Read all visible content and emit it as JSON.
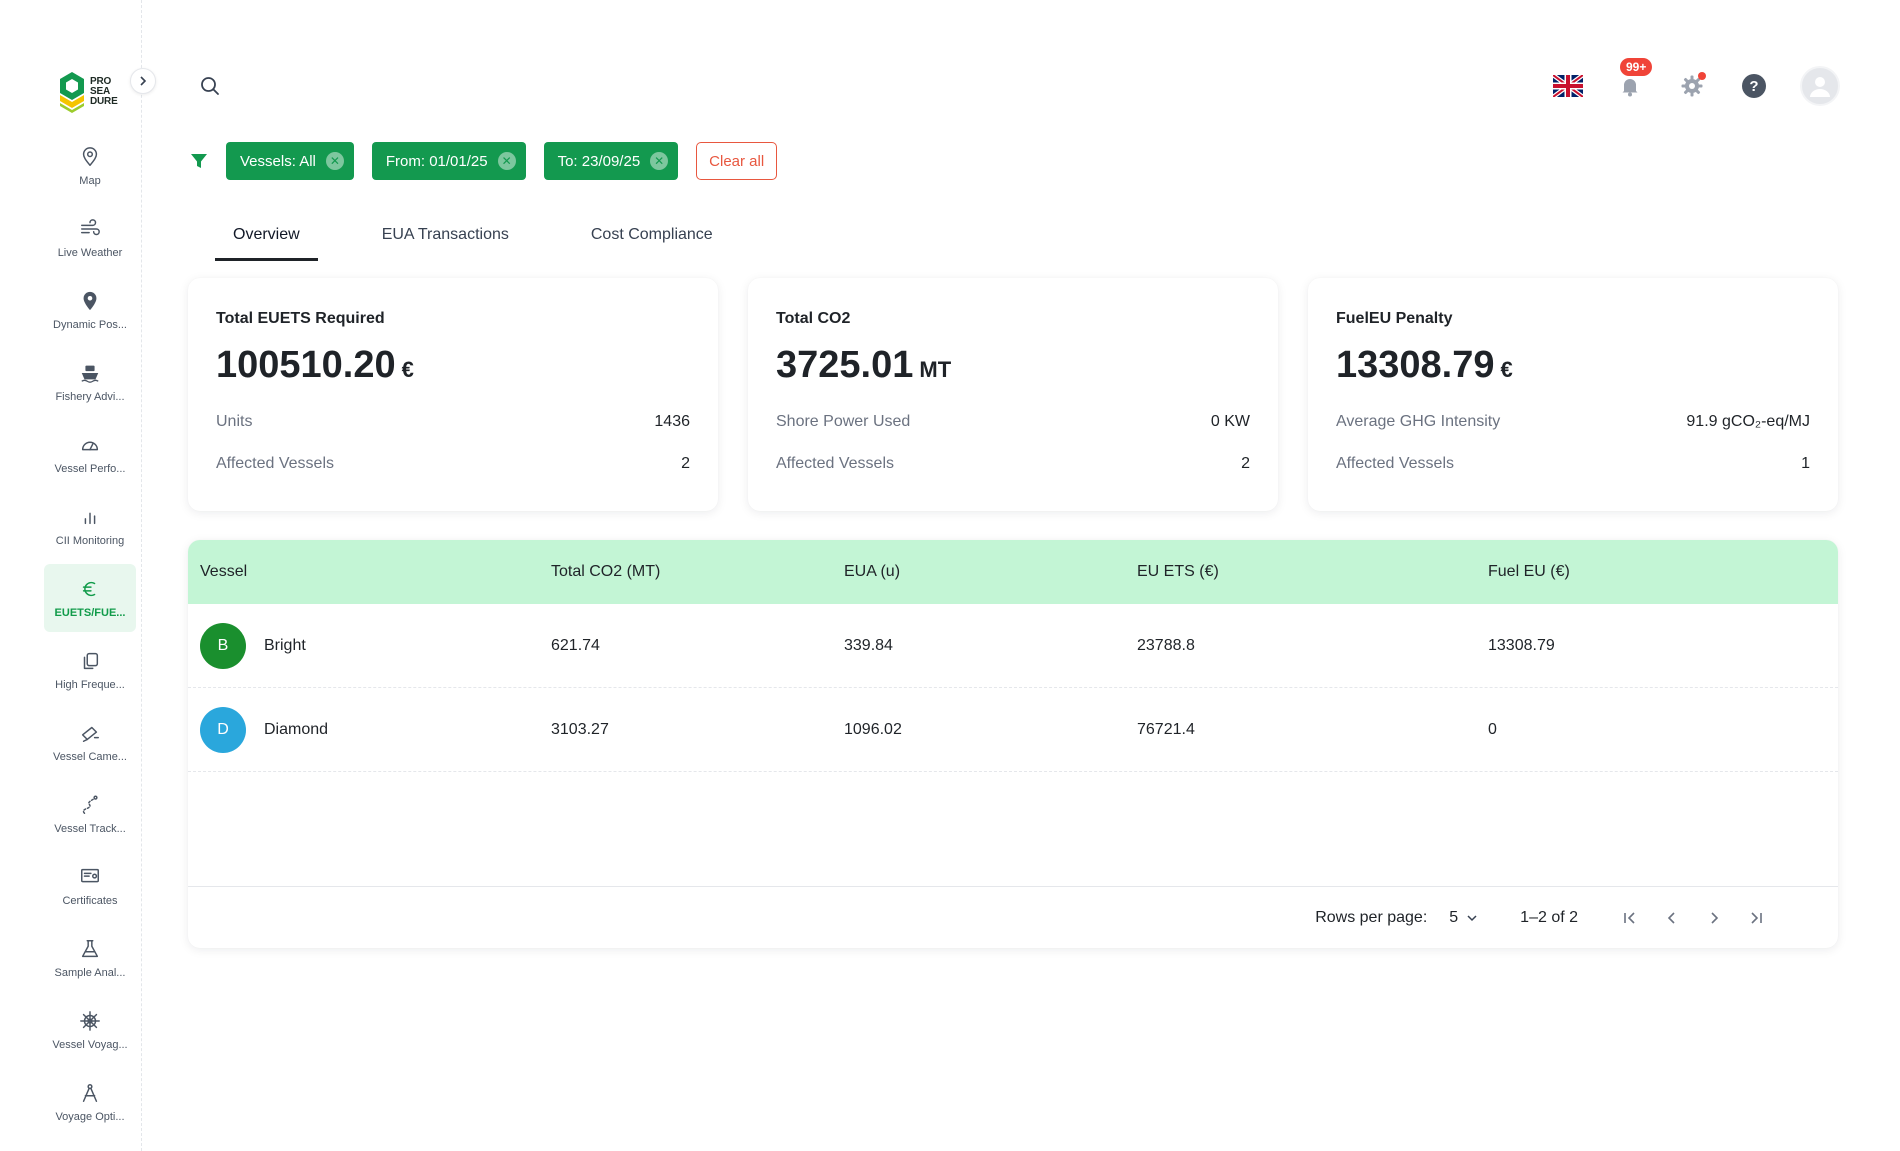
{
  "logo": {
    "line1": "PRO",
    "line2": "SEA",
    "line3": "DURE"
  },
  "sidebar": {
    "items": [
      {
        "label": "Map",
        "icon": "map-pin-icon",
        "active": false
      },
      {
        "label": "Live Weather",
        "icon": "wind-icon",
        "active": false
      },
      {
        "label": "Dynamic Pos...",
        "icon": "location-icon",
        "active": false
      },
      {
        "label": "Fishery Advi...",
        "icon": "ship-icon",
        "active": false
      },
      {
        "label": "Vessel Perfo...",
        "icon": "gauge-icon",
        "active": false
      },
      {
        "label": "CII Monitoring",
        "icon": "bar-chart-icon",
        "active": false
      },
      {
        "label": "EUETS/FUE...",
        "icon": "euro-icon",
        "active": true
      },
      {
        "label": "High Freque...",
        "icon": "copy-icon",
        "active": false
      },
      {
        "label": "Vessel Came...",
        "icon": "camera-icon",
        "active": false
      },
      {
        "label": "Vessel Track...",
        "icon": "route-icon",
        "active": false
      },
      {
        "label": "Certificates",
        "icon": "certificate-icon",
        "active": false
      },
      {
        "label": "Sample Anal...",
        "icon": "flask-icon",
        "active": false
      },
      {
        "label": "Vessel Voyag...",
        "icon": "helm-icon",
        "active": false
      },
      {
        "label": "Voyage Opti...",
        "icon": "compass-icon",
        "active": false
      }
    ]
  },
  "header": {
    "notifications_badge": "99+"
  },
  "filters": {
    "chips": [
      {
        "label": "Vessels: All"
      },
      {
        "label": "From: 01/01/25"
      },
      {
        "label": "To: 23/09/25"
      }
    ],
    "clear_label": "Clear all"
  },
  "tabs": [
    {
      "label": "Overview",
      "active": true
    },
    {
      "label": "EUA Transactions",
      "active": false
    },
    {
      "label": "Cost Compliance",
      "active": false
    }
  ],
  "cards": [
    {
      "title": "Total EUETS Required",
      "value": "100510.20",
      "unit": "€",
      "rows": [
        {
          "key": "Units",
          "value": "1436"
        },
        {
          "key": "Affected Vessels",
          "value": "2"
        }
      ]
    },
    {
      "title": "Total CO2",
      "value": "3725.01",
      "unit": "MT",
      "rows": [
        {
          "key": "Shore Power Used",
          "value": "0 KW"
        },
        {
          "key": "Affected Vessels",
          "value": "2"
        }
      ]
    },
    {
      "title": "FuelEU Penalty",
      "value": "13308.79",
      "unit": "€",
      "rows": [
        {
          "key": "Average GHG Intensity",
          "value": "91.9 gCO₂-eq/MJ"
        },
        {
          "key": "Affected Vessels",
          "value": "1"
        }
      ]
    }
  ],
  "table": {
    "columns": [
      "Vessel",
      "Total CO2 (MT)",
      "EUA (u)",
      "EU ETS (€)",
      "Fuel EU (€)"
    ],
    "rows": [
      {
        "initial": "B",
        "avatar_color": "#1a8f2e",
        "vessel": "Bright",
        "co2": "621.74",
        "eua": "339.84",
        "euets": "23788.8",
        "fueleu": "13308.79"
      },
      {
        "initial": "D",
        "avatar_color": "#2aa7dc",
        "vessel": "Diamond",
        "co2": "3103.27",
        "eua": "1096.02",
        "euets": "76721.4",
        "fueleu": "0"
      }
    ],
    "footer": {
      "rows_per_page_label": "Rows per page:",
      "rows_per_page_value": "5",
      "range": "1–2 of 2"
    }
  },
  "colors": {
    "accent": "#13994f",
    "table_header": "#c3f5d5",
    "clear_button": "#e8573f",
    "badge": "#f04438"
  }
}
